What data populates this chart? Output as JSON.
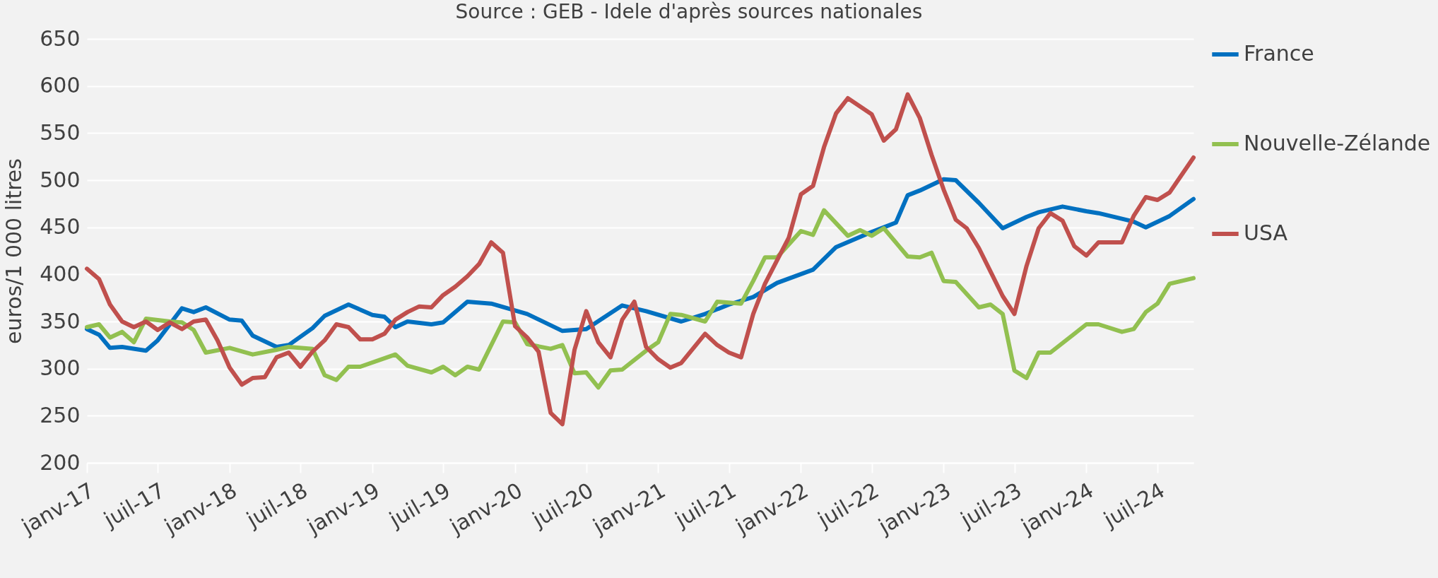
{
  "chart_data": {
    "type": "line",
    "ylabel": "euros/1 000 litres",
    "annotations": [
      "Source : GEB - Idele d'après sources nationales"
    ],
    "ylim": [
      200,
      650
    ],
    "yticks": [
      200,
      250,
      300,
      350,
      400,
      450,
      500,
      550,
      600,
      650
    ],
    "xlim": [
      "2017-01",
      "2024-10"
    ],
    "xticks": [
      {
        "value": "2017-01",
        "label": "janv-17"
      },
      {
        "value": "2017-07",
        "label": "juil-17"
      },
      {
        "value": "2018-01",
        "label": "janv-18"
      },
      {
        "value": "2018-07",
        "label": "juil-18"
      },
      {
        "value": "2019-01",
        "label": "janv-19"
      },
      {
        "value": "2019-07",
        "label": "juil-19"
      },
      {
        "value": "2020-01",
        "label": "janv-20"
      },
      {
        "value": "2020-07",
        "label": "juil-20"
      },
      {
        "value": "2021-01",
        "label": "janv-21"
      },
      {
        "value": "2021-07",
        "label": "juil-21"
      },
      {
        "value": "2022-01",
        "label": "janv-22"
      },
      {
        "value": "2022-07",
        "label": "juil-22"
      },
      {
        "value": "2023-01",
        "label": "janv-23"
      },
      {
        "value": "2023-07",
        "label": "juil-23"
      },
      {
        "value": "2024-01",
        "label": "janv-24"
      },
      {
        "value": "2024-07",
        "label": "juil-24"
      }
    ],
    "grid": "y",
    "legend": "right",
    "marker": "none",
    "line_style": "solid",
    "series": [
      {
        "name": "France",
        "color": "#0070c0",
        "x": [
          "2017-01",
          "2017-02",
          "2017-03",
          "2017-04",
          "2017-06",
          "2017-07",
          "2017-09",
          "2017-10",
          "2017-11",
          "2018-01",
          "2018-02",
          "2018-03",
          "2018-05",
          "2018-06",
          "2018-08",
          "2018-09",
          "2018-11",
          "2019-01",
          "2019-02",
          "2019-03",
          "2019-04",
          "2019-06",
          "2019-07",
          "2019-09",
          "2019-11",
          "2020-02",
          "2020-05",
          "2020-07",
          "2020-10",
          "2020-12",
          "2021-03",
          "2021-05",
          "2021-07",
          "2021-09",
          "2021-11",
          "2022-02",
          "2022-04",
          "2022-07",
          "2022-09",
          "2022-10",
          "2022-11",
          "2023-01",
          "2023-02",
          "2023-04",
          "2023-06",
          "2023-08",
          "2023-09",
          "2023-11",
          "2024-01",
          "2024-02",
          "2024-05",
          "2024-06",
          "2024-08",
          "2024-10"
        ],
        "values": [
          342,
          336,
          322,
          323,
          319,
          330,
          364,
          360,
          365,
          352,
          351,
          335,
          323,
          325,
          343,
          356,
          368,
          357,
          355,
          344,
          350,
          347,
          349,
          371,
          369,
          358,
          340,
          342,
          367,
          361,
          350,
          358,
          368,
          376,
          391,
          405,
          429,
          445,
          455,
          484,
          489,
          501,
          500,
          476,
          449,
          461,
          466,
          472,
          467,
          465,
          456,
          450,
          462,
          480
        ]
      },
      {
        "name": "Nouvelle-Zélande",
        "color": "#92c050",
        "x": [
          "2017-01",
          "2017-02",
          "2017-03",
          "2017-04",
          "2017-05",
          "2017-06",
          "2017-08",
          "2017-09",
          "2017-10",
          "2017-11",
          "2018-01",
          "2018-03",
          "2018-05",
          "2018-06",
          "2018-08",
          "2018-09",
          "2018-10",
          "2018-11",
          "2018-12",
          "2019-03",
          "2019-04",
          "2019-06",
          "2019-07",
          "2019-08",
          "2019-09",
          "2019-10",
          "2019-12",
          "2020-01",
          "2020-02",
          "2020-04",
          "2020-05",
          "2020-06",
          "2020-07",
          "2020-08",
          "2020-09",
          "2020-10",
          "2020-12",
          "2021-01",
          "2021-02",
          "2021-03",
          "2021-05",
          "2021-06",
          "2021-08",
          "2021-09",
          "2021-10",
          "2021-11",
          "2022-01",
          "2022-02",
          "2022-03",
          "2022-05",
          "2022-06",
          "2022-07",
          "2022-08",
          "2022-10",
          "2022-11",
          "2022-12",
          "2023-01",
          "2023-02",
          "2023-04",
          "2023-05",
          "2023-06",
          "2023-07",
          "2023-08",
          "2023-09",
          "2023-10",
          "2024-01",
          "2024-02",
          "2024-04",
          "2024-05",
          "2024-06",
          "2024-07",
          "2024-08",
          "2024-10"
        ],
        "values": [
          344,
          347,
          333,
          339,
          328,
          353,
          350,
          349,
          341,
          317,
          322,
          315,
          320,
          323,
          321,
          293,
          288,
          302,
          302,
          315,
          303,
          296,
          302,
          293,
          302,
          299,
          350,
          349,
          326,
          321,
          325,
          295,
          296,
          280,
          298,
          299,
          319,
          328,
          358,
          357,
          350,
          371,
          369,
          393,
          418,
          418,
          446,
          442,
          468,
          441,
          447,
          441,
          449,
          419,
          418,
          423,
          393,
          392,
          365,
          368,
          358,
          298,
          290,
          317,
          317,
          347,
          347,
          339,
          342,
          360,
          369,
          390,
          396
        ]
      },
      {
        "name": "USA",
        "color": "#c0504d",
        "x": [
          "2017-01",
          "2017-02",
          "2017-03",
          "2017-04",
          "2017-05",
          "2017-06",
          "2017-07",
          "2017-08",
          "2017-09",
          "2017-10",
          "2017-11",
          "2017-12",
          "2018-01",
          "2018-02",
          "2018-03",
          "2018-04",
          "2018-05",
          "2018-06",
          "2018-07",
          "2018-08",
          "2018-09",
          "2018-10",
          "2018-11",
          "2018-12",
          "2019-01",
          "2019-02",
          "2019-03",
          "2019-04",
          "2019-05",
          "2019-06",
          "2019-07",
          "2019-08",
          "2019-09",
          "2019-10",
          "2019-11",
          "2019-12",
          "2020-01",
          "2020-02",
          "2020-03",
          "2020-04",
          "2020-05",
          "2020-06",
          "2020-07",
          "2020-08",
          "2020-09",
          "2020-10",
          "2020-11",
          "2020-12",
          "2021-01",
          "2021-02",
          "2021-03",
          "2021-05",
          "2021-06",
          "2021-07",
          "2021-08",
          "2021-09",
          "2021-10",
          "2021-11",
          "2021-12",
          "2022-01",
          "2022-02",
          "2022-03",
          "2022-04",
          "2022-05",
          "2022-07",
          "2022-08",
          "2022-09",
          "2022-10",
          "2022-11",
          "2022-12",
          "2023-01",
          "2023-02",
          "2023-03",
          "2023-04",
          "2023-05",
          "2023-06",
          "2023-07",
          "2023-08",
          "2023-09",
          "2023-10",
          "2023-11",
          "2023-12",
          "2024-01",
          "2024-02",
          "2024-04",
          "2024-05",
          "2024-06",
          "2024-07",
          "2024-08",
          "2024-10"
        ],
        "values": [
          406,
          395,
          368,
          350,
          344,
          350,
          341,
          349,
          342,
          350,
          352,
          330,
          301,
          283,
          290,
          291,
          312,
          317,
          302,
          318,
          330,
          347,
          344,
          331,
          331,
          337,
          352,
          360,
          366,
          365,
          378,
          387,
          398,
          411,
          434,
          423,
          345,
          333,
          318,
          253,
          241,
          320,
          361,
          328,
          312,
          352,
          371,
          323,
          310,
          301,
          306,
          337,
          325,
          317,
          312,
          358,
          390,
          415,
          439,
          485,
          494,
          535,
          571,
          587,
          570,
          542,
          554,
          591,
          566,
          527,
          490,
          458,
          449,
          428,
          403,
          377,
          358,
          409,
          449,
          465,
          457,
          430,
          420,
          434,
          434,
          462,
          482,
          479,
          487,
          524
        ]
      }
    ]
  }
}
